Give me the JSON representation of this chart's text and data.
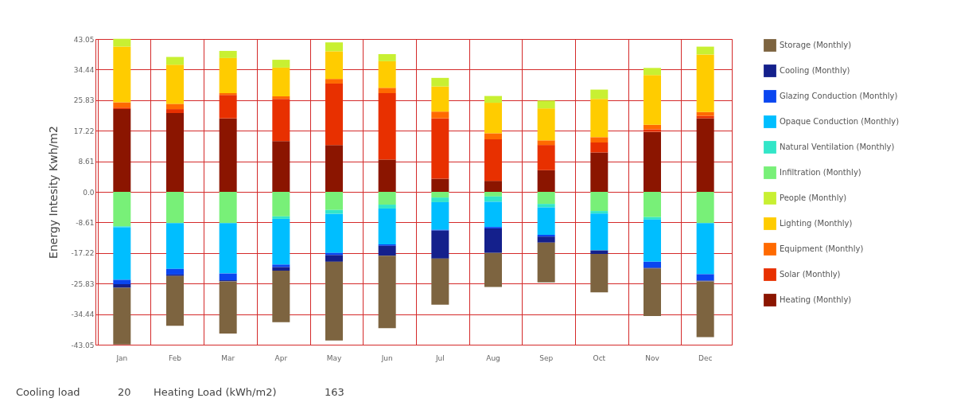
{
  "chart_data": {
    "type": "bar",
    "stacked": true,
    "ylabel": "Energy Intesity Kwh/m2",
    "categories": [
      "Jan",
      "Feb",
      "Mar",
      "Apr",
      "May",
      "Jun",
      "Jul",
      "Aug",
      "Sep",
      "Oct",
      "Nov",
      "Dec"
    ],
    "series": [
      {
        "name": "Heating (Monthly)",
        "color": "#8b1500",
        "values": [
          23.3,
          22.2,
          20.7,
          14.3,
          13.2,
          9.1,
          3.7,
          3.1,
          6.1,
          11.1,
          16.9,
          20.7
        ]
      },
      {
        "name": "Solar (Monthly)",
        "color": "#e83000",
        "values": [
          0.4,
          1.1,
          6.6,
          11.9,
          17.3,
          18.7,
          17.0,
          11.7,
          7.1,
          2.8,
          0.7,
          0.7
        ]
      },
      {
        "name": "Equipment (Monthly)",
        "color": "#ff6a00",
        "values": [
          1.5,
          1.5,
          0.5,
          0.7,
          1.3,
          1.5,
          1.9,
          1.7,
          1.3,
          1.5,
          1.3,
          1.1
        ]
      },
      {
        "name": "Lighting (Monthly)",
        "color": "#ffcc00",
        "values": [
          15.7,
          11.0,
          9.9,
          8.1,
          7.8,
          7.5,
          7.1,
          8.6,
          9.0,
          10.8,
          14.0,
          16.2
        ]
      },
      {
        "name": "People (Monthly)",
        "color": "#c8f032",
        "values": [
          2.2,
          2.2,
          2.0,
          2.2,
          2.5,
          2.0,
          2.4,
          1.9,
          2.2,
          2.6,
          2.0,
          2.2
        ]
      },
      {
        "name": "Infiltration (Monthly)",
        "color": "#78f078",
        "values": [
          -9.7,
          -8.8,
          -8.8,
          -6.9,
          -5.1,
          -3.6,
          -1.6,
          -1.3,
          -3.4,
          -5.4,
          -7.1,
          -8.8
        ]
      },
      {
        "name": "Natural Ventilation (Monthly)",
        "color": "#32e6c8",
        "values": [
          -0.3,
          0,
          0,
          -0.7,
          -1.1,
          -1.1,
          -1.3,
          -1.5,
          -1.0,
          -0.7,
          -0.7,
          0
        ]
      },
      {
        "name": "Opaque Conduction (Monthly)",
        "color": "#00beff",
        "values": [
          -14.8,
          -12.9,
          -14.2,
          -12.9,
          -11.0,
          -10.1,
          -7.8,
          -7.1,
          -7.7,
          -10.4,
          -11.9,
          -14.4
        ]
      },
      {
        "name": "Glazing Conduction (Monthly)",
        "color": "#0a46f0",
        "values": [
          -1.2,
          -1.6,
          -1.9,
          -0.7,
          -0.6,
          -0.4,
          -0.2,
          -0.4,
          -0.5,
          null,
          -1.7,
          -1.8
        ]
      },
      {
        "name": "Cooling (Monthly)",
        "color": "#14208c",
        "values": [
          -1.0,
          -0.4,
          -0.3,
          -1.0,
          -1.9,
          -2.8,
          -7.9,
          -6.9,
          -1.7,
          -1.0,
          -0.2,
          -0.2
        ]
      },
      {
        "name": "Storage (Monthly)",
        "color": "#7d6440",
        "values": [
          -16.0,
          -14.0,
          -14.7,
          -14.5,
          -22.2,
          -20.4,
          -13.0,
          -9.6,
          -11.2,
          -10.8,
          -13.4,
          -15.7
        ]
      }
    ],
    "ylim": [
      -43.05,
      43.05
    ],
    "yticks": [
      43.05,
      34.44,
      25.83,
      17.22,
      8.61,
      {
        "value": 0,
        "label": "0.0"
      },
      -8.61,
      -17.22,
      -25.83,
      -34.44,
      -43.05
    ],
    "grid": true,
    "legend": "right",
    "annotations": [
      "Cooling load",
      "20",
      "Heating Load (kWh/m2)",
      "163"
    ]
  }
}
